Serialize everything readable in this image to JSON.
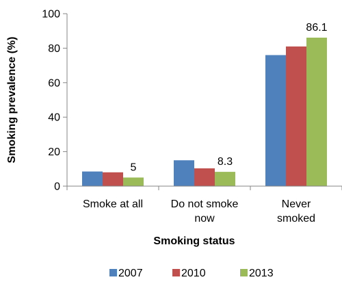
{
  "chart_data": {
    "type": "bar",
    "title": "",
    "xlabel": "Smoking status",
    "ylabel": "Smoking prevalence (%)",
    "ylim": [
      0,
      100
    ],
    "yticks": [
      0,
      20,
      40,
      60,
      80,
      100
    ],
    "grid": false,
    "legend": "bottom",
    "categories": [
      [
        "Smoke at all"
      ],
      [
        "Do not smoke",
        "now"
      ],
      [
        "Never",
        "smoked"
      ]
    ],
    "series": [
      {
        "name": "2007",
        "color": "#4F81BD",
        "values": [
          8.5,
          15,
          76
        ]
      },
      {
        "name": "2010",
        "color": "#C0504D",
        "values": [
          8,
          10.3,
          81
        ]
      },
      {
        "name": "2013",
        "color": "#9BBB59",
        "values": [
          5,
          8.3,
          86.1
        ]
      }
    ],
    "data_labels": [
      {
        "series": 2,
        "category": 0,
        "text": "5"
      },
      {
        "series": 2,
        "category": 1,
        "text": "8.3"
      },
      {
        "series": 2,
        "category": 2,
        "text": "86.1"
      }
    ]
  }
}
